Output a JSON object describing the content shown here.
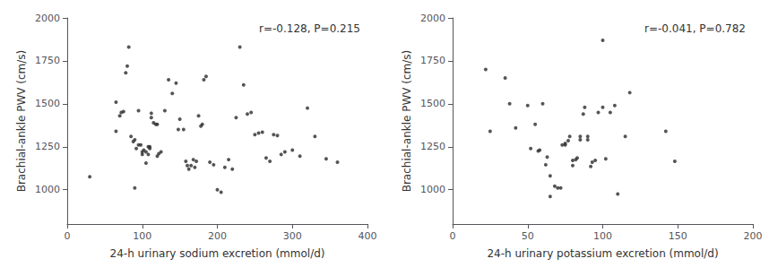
{
  "chart_data": [
    {
      "type": "scatter",
      "xlabel": "24-h urinary sodium excretion (mmol/d)",
      "ylabel": "Brachial-ankle PWV (cm/s)",
      "annotation": "r=-0.128, P=0.215",
      "xlim": [
        0,
        400
      ],
      "ylim": [
        800,
        2000
      ],
      "xticks": [
        0,
        100,
        200,
        300,
        400
      ],
      "yticks": [
        1000,
        1250,
        1500,
        1750,
        2000
      ],
      "color": "#2a2a2a",
      "grid": false,
      "x": [
        30,
        65,
        65,
        70,
        72,
        75,
        78,
        80,
        82,
        85,
        88,
        90,
        90,
        92,
        95,
        95,
        98,
        100,
        100,
        102,
        105,
        105,
        108,
        108,
        110,
        110,
        112,
        112,
        115,
        118,
        120,
        120,
        122,
        125,
        130,
        135,
        140,
        145,
        148,
        150,
        155,
        158,
        160,
        162,
        165,
        168,
        170,
        172,
        175,
        178,
        180,
        182,
        185,
        190,
        195,
        200,
        205,
        210,
        215,
        220,
        225,
        230,
        235,
        240,
        245,
        250,
        255,
        260,
        265,
        270,
        275,
        280,
        285,
        290,
        300,
        310,
        320,
        330,
        345,
        360
      ],
      "y": [
        1075,
        1510,
        1340,
        1430,
        1450,
        1455,
        1680,
        1720,
        1830,
        1310,
        1280,
        1290,
        1010,
        1240,
        1260,
        1460,
        1260,
        1205,
        1220,
        1230,
        1155,
        1220,
        1205,
        1250,
        1240,
        1250,
        1420,
        1445,
        1390,
        1380,
        1380,
        1195,
        1210,
        1220,
        1460,
        1640,
        1560,
        1620,
        1350,
        1410,
        1350,
        1165,
        1140,
        1120,
        1140,
        1175,
        1130,
        1165,
        1430,
        1370,
        1380,
        1640,
        1660,
        1160,
        1145,
        1000,
        985,
        1130,
        1175,
        1120,
        1420,
        1830,
        1610,
        1440,
        1450,
        1320,
        1330,
        1335,
        1185,
        1165,
        1320,
        1315,
        1205,
        1220,
        1230,
        1195,
        1475,
        1310,
        1180,
        1160
      ]
    },
    {
      "type": "scatter",
      "xlabel": "24-h urinary potassium excretion (mmol/d)",
      "ylabel": "Brachial-ankle PWV (cm/s)",
      "annotation": "r=-0.041, P=0.782",
      "xlim": [
        0,
        200
      ],
      "ylim": [
        800,
        2000
      ],
      "xticks": [
        0,
        50,
        100,
        150,
        200
      ],
      "yticks": [
        1000,
        1250,
        1500,
        1750,
        2000
      ],
      "color": "#2a2a2a",
      "grid": false,
      "x": [
        22,
        25,
        35,
        38,
        42,
        50,
        52,
        55,
        57,
        58,
        60,
        62,
        63,
        65,
        65,
        68,
        70,
        72,
        73,
        75,
        75,
        77,
        78,
        80,
        80,
        82,
        83,
        85,
        85,
        87,
        88,
        90,
        90,
        92,
        93,
        95,
        97,
        100,
        100,
        102,
        105,
        108,
        110,
        115,
        118,
        142,
        148
      ],
      "y": [
        1700,
        1340,
        1650,
        1500,
        1360,
        1490,
        1240,
        1380,
        1225,
        1230,
        1500,
        1145,
        1190,
        960,
        1080,
        1020,
        1010,
        1010,
        1260,
        1260,
        1270,
        1285,
        1310,
        1140,
        1170,
        1175,
        1185,
        1290,
        1310,
        1440,
        1480,
        1290,
        1310,
        1135,
        1160,
        1170,
        1450,
        1870,
        1480,
        1180,
        1450,
        1490,
        975,
        1310,
        1565,
        1340,
        1165
      ]
    }
  ]
}
